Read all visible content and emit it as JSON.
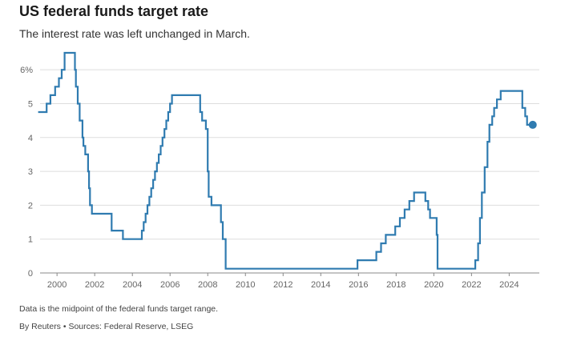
{
  "header": {
    "title": "US federal funds target rate",
    "subtitle": "The interest rate was left unchanged in March."
  },
  "footer": {
    "note": "Data is the midpoint of the federal funds target range.",
    "source": "By Reuters • Sources: Federal Reserve, LSEG"
  },
  "chart_data": {
    "type": "line",
    "title": "US federal funds target rate",
    "xlabel": "",
    "ylabel": "",
    "xlim": [
      1999.1,
      2025.6
    ],
    "ylim": [
      0,
      6.5
    ],
    "y_ticks": [
      0,
      1,
      2,
      3,
      4,
      5,
      6
    ],
    "y_tick_labels": [
      "0",
      "1",
      "2",
      "3",
      "4",
      "5",
      "6%"
    ],
    "x_ticks": [
      2000,
      2002,
      2004,
      2006,
      2008,
      2010,
      2012,
      2014,
      2016,
      2018,
      2020,
      2022,
      2024
    ],
    "x_tick_labels": [
      "2000",
      "2002",
      "2004",
      "2006",
      "2008",
      "2010",
      "2012",
      "2014",
      "2016",
      "2018",
      "2020",
      "2022",
      "2024"
    ],
    "grid": "horizontal",
    "line_color": "#2f7bb0",
    "marker_color": "#2f7bb0",
    "series": [
      {
        "x": [
          1999.0,
          1999.45,
          1999.65,
          1999.9,
          2000.1,
          2000.25,
          2000.4,
          2000.95,
          2001.0,
          2001.1,
          2001.2,
          2001.35,
          2001.4,
          2001.5,
          2001.65,
          2001.7,
          2001.75,
          2001.85,
          2001.9,
          2002.9,
          2003.5,
          2004.5,
          2004.6,
          2004.7,
          2004.8,
          2004.9,
          2005.0,
          2005.1,
          2005.2,
          2005.3,
          2005.4,
          2005.5,
          2005.6,
          2005.7,
          2005.8,
          2005.9,
          2006.0,
          2006.1,
          2006.2,
          2006.3,
          2006.4,
          2006.5,
          2007.6,
          2007.7,
          2007.9,
          2008.0,
          2008.05,
          2008.2,
          2008.3,
          2008.7,
          2008.8,
          2008.95,
          2015.95,
          2016.95,
          2017.2,
          2017.45,
          2017.95,
          2018.2,
          2018.45,
          2018.7,
          2018.95,
          2019.55,
          2019.7,
          2019.8,
          2020.15,
          2020.2,
          2022.2,
          2022.35,
          2022.45,
          2022.55,
          2022.7,
          2022.85,
          2022.95,
          2023.1,
          2023.2,
          2023.35,
          2023.55,
          2024.7,
          2024.85,
          2024.95,
          2025.25
        ],
        "values": [
          4.75,
          5.0,
          5.25,
          5.5,
          5.75,
          6.0,
          6.5,
          6.0,
          5.5,
          5.0,
          4.5,
          4.0,
          3.75,
          3.5,
          3.0,
          2.5,
          2.0,
          1.75,
          1.75,
          1.25,
          1.0,
          1.25,
          1.5,
          1.75,
          2.0,
          2.25,
          2.5,
          2.75,
          3.0,
          3.25,
          3.5,
          3.75,
          4.0,
          4.25,
          4.5,
          4.75,
          5.0,
          5.25,
          5.25,
          5.25,
          5.25,
          5.25,
          4.75,
          4.5,
          4.25,
          3.0,
          2.25,
          2.0,
          2.0,
          1.5,
          1.0,
          0.125,
          0.375,
          0.625,
          0.875,
          1.125,
          1.375,
          1.625,
          1.875,
          2.125,
          2.375,
          2.125,
          1.875,
          1.625,
          1.125,
          0.125,
          0.375,
          0.875,
          1.625,
          2.375,
          3.125,
          3.875,
          4.375,
          4.625,
          4.875,
          5.125,
          5.375,
          4.875,
          4.625,
          4.375,
          4.375
        ]
      }
    ],
    "end_marker": {
      "x": 2025.25,
      "y": 4.375
    }
  }
}
